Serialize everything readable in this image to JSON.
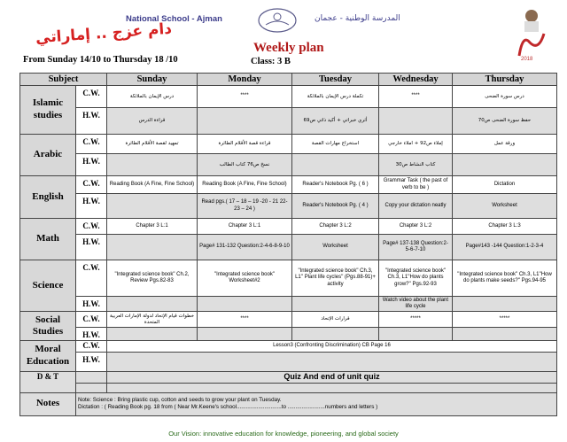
{
  "header": {
    "slogan": "دام عزج .. إماراتي",
    "school_en": "National School - Ajman",
    "school_ar": "المدرسة الوطنية - عجمان",
    "zayed_year": "2018",
    "title": "Weekly plan",
    "dates": "From Sunday  14/10  to  Thursday  18 /10",
    "class": "Class: 3 B"
  },
  "table": {
    "headers": [
      "Subject",
      "Sunday",
      "Monday",
      "Tuesday",
      "Wednesday",
      "Thursday"
    ],
    "cw_label": "C.W.",
    "hw_label": "H.W.",
    "subjects": [
      {
        "name": "Islamic studies",
        "cw": [
          "درس الإيمان بالملائكة",
          "****",
          "تكملة درس الإيمان بالملائكة",
          "****",
          "درس سورة الضحى"
        ],
        "hw": [
          "قراءة الدرس",
          "",
          "أثري خبراتي + أكيد ذاتي ص69",
          "",
          "حفظ سورة الضحى ص70"
        ]
      },
      {
        "name": "Arabic",
        "cw": [
          "تمهيد لقصة الأقلام الطائرة",
          "قراءة قصة الأقلام الطائرة",
          "استخراج مهارات القصة",
          "إملاء ص92 + املاء خارجي",
          "ورقة عمل"
        ],
        "hw": [
          "",
          "نسخ ص76 كتاب الطالب",
          "",
          "كتاب النشاط ص30",
          ""
        ]
      },
      {
        "name": "English",
        "cw": [
          "Reading Book (A Fine, Fine School)",
          "Reading Book (A Fine, Fine School)",
          "Reader's Notebook Pg. ( 6 )",
          "Grammar Task ( the past of verb to be )",
          "Dictation"
        ],
        "hw": [
          "",
          "Read pgs.( 17 – 18 – 19 -20 - 21 22- 23 – 24 )",
          "Reader's Notebook Pg. ( 4 )",
          "Copy your dictation neatly",
          "Worksheet"
        ]
      },
      {
        "name": "Math",
        "cw": [
          "Chapter 3 L:1",
          "Chapter 3 L:1",
          "Chapter 3 L:2",
          "Chapter 3 L:2",
          "Chapter 3 L:3"
        ],
        "hw": [
          "",
          "Page# 131-132 Question:2-4-6-8-9-10",
          "Worksheet",
          "Page# 137-138 Question:2-5-6-7-10",
          "Page#143 -144 Question:1-2-3-4"
        ]
      },
      {
        "name": "Science",
        "cw": [
          "\"Integrated science book\" Ch.2, Review Pgs.82-83",
          "\"Integrated science book\" Worksheet#2",
          "\"Integrated science book\" Ch.3, L1'' Plant life cycles'' (Pgs.88-91)+ activity",
          "\"Integrated science book\" Ch.3, L1''How do plants grow?'' Pgs.92-93",
          "\"Integrated science book\" Ch.3, L1''How do plants make seeds?'' Pgs.94-95"
        ],
        "hw": [
          "",
          "",
          "",
          "Watch video about the plant life cycle",
          ""
        ]
      },
      {
        "name": "Social Studies",
        "cw": [
          "خطوات قيام الإتحاد لدولة الإمارات العربية المتحدة",
          "****",
          "قرارات الإتحاد",
          "*****",
          "*****"
        ],
        "hw": [
          "",
          "",
          "",
          "",
          ""
        ]
      }
    ],
    "moral": {
      "name": "Moral Education",
      "cw": "Lesson3 (Confronting Discrimination) CB Page 16",
      "hw": ""
    },
    "dt": {
      "name": "D & T",
      "text": "Quiz And end of unit quiz"
    },
    "notes": {
      "name": "Notes",
      "line1": "Note: Science : Bring plastic cup, cotton and seeds to grow your plant on Tuesday.",
      "line2": "Dictation : ( Reading Book pg. 18 from ( Near Mr.Keene's school.............................to ........................numbers and letters )"
    }
  },
  "footer": {
    "vision": "Our Vision:  innovative education for knowledge, pioneering, and global society"
  },
  "colors": {
    "title": "#b01818",
    "header_bg": "#d4d4d4",
    "hw_bg": "#dedede",
    "vision": "#2a6a1a"
  }
}
